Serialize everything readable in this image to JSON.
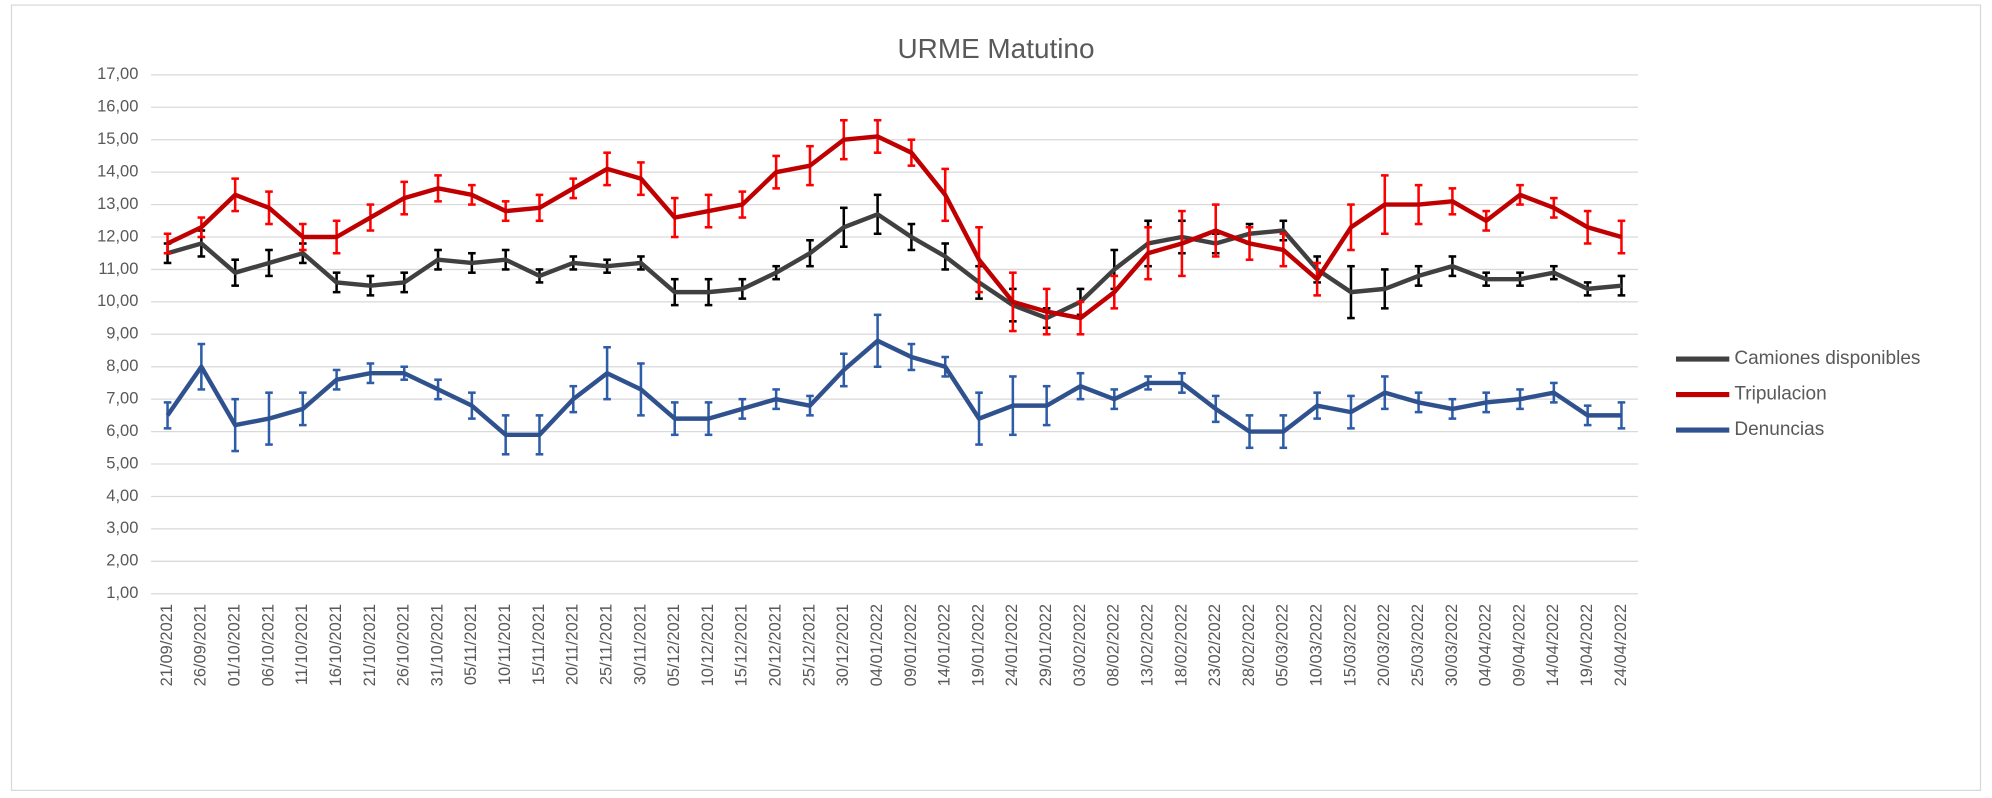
{
  "chart_data": {
    "type": "line",
    "title": "URME Matutino",
    "categories": [
      "21/09/2021",
      "26/09/2021",
      "01/10/2021",
      "06/10/2021",
      "11/10/2021",
      "16/10/2021",
      "21/10/2021",
      "26/10/2021",
      "31/10/2021",
      "05/11/2021",
      "10/11/2021",
      "15/11/2021",
      "20/11/2021",
      "25/11/2021",
      "30/11/2021",
      "05/12/2021",
      "10/12/2021",
      "15/12/2021",
      "20/12/2021",
      "25/12/2021",
      "30/12/2021",
      "04/01/2022",
      "09/01/2022",
      "14/01/2022",
      "19/01/2022",
      "24/01/2022",
      "29/01/2022",
      "03/02/2022",
      "08/02/2022",
      "13/02/2022",
      "18/02/2022",
      "23/02/2022",
      "28/02/2022",
      "05/03/2022",
      "10/03/2022",
      "15/03/2022",
      "20/03/2022",
      "25/03/2022",
      "30/03/2022",
      "04/04/2022",
      "09/04/2022",
      "14/04/2022",
      "19/04/2022",
      "24/04/2022"
    ],
    "series": [
      {
        "name": "Camiones disponibles",
        "color": "#404040",
        "error_color": "#000000",
        "values": [
          11.5,
          11.8,
          10.9,
          11.2,
          11.5,
          10.6,
          10.5,
          10.6,
          11.3,
          11.2,
          11.3,
          10.8,
          11.2,
          11.1,
          11.2,
          10.3,
          10.3,
          10.4,
          10.9,
          11.5,
          12.3,
          12.7,
          12.0,
          11.4,
          10.6,
          9.9,
          9.5,
          10.0,
          11.0,
          11.8,
          12.0,
          11.8,
          12.1,
          12.2,
          11.0,
          10.3,
          10.4,
          10.8,
          11.1,
          10.7,
          10.7,
          10.9,
          10.4,
          10.5
        ],
        "errors": [
          0.3,
          0.4,
          0.4,
          0.4,
          0.3,
          0.3,
          0.3,
          0.3,
          0.3,
          0.3,
          0.3,
          0.2,
          0.2,
          0.2,
          0.2,
          0.4,
          0.4,
          0.3,
          0.2,
          0.4,
          0.6,
          0.6,
          0.4,
          0.4,
          0.5,
          0.5,
          0.3,
          0.4,
          0.6,
          0.7,
          0.5,
          0.3,
          0.3,
          0.3,
          0.4,
          0.8,
          0.6,
          0.3,
          0.3,
          0.2,
          0.2,
          0.2,
          0.2,
          0.3
        ]
      },
      {
        "name": "Tripulacion",
        "color": "#c00000",
        "error_color": "#ff0000",
        "values": [
          11.8,
          12.3,
          13.3,
          12.9,
          12.0,
          12.0,
          12.6,
          13.2,
          13.5,
          13.3,
          12.8,
          12.9,
          13.5,
          14.1,
          13.8,
          12.6,
          12.8,
          13.0,
          14.0,
          14.2,
          15.0,
          15.1,
          14.6,
          13.3,
          11.3,
          10.0,
          9.7,
          9.5,
          10.3,
          11.5,
          11.8,
          12.2,
          11.8,
          11.6,
          10.7,
          12.3,
          13.0,
          13.0,
          13.1,
          12.5,
          13.3,
          12.9,
          12.3,
          12.0
        ],
        "errors": [
          0.3,
          0.3,
          0.5,
          0.5,
          0.4,
          0.5,
          0.4,
          0.5,
          0.4,
          0.3,
          0.3,
          0.4,
          0.3,
          0.5,
          0.5,
          0.6,
          0.5,
          0.4,
          0.5,
          0.6,
          0.6,
          0.5,
          0.4,
          0.8,
          1.0,
          0.9,
          0.7,
          0.5,
          0.5,
          0.8,
          1.0,
          0.8,
          0.5,
          0.5,
          0.5,
          0.7,
          0.9,
          0.6,
          0.4,
          0.3,
          0.3,
          0.3,
          0.5,
          0.5
        ]
      },
      {
        "name": "Denuncias",
        "color": "#2f528f",
        "error_color": "#2e5da8",
        "values": [
          6.5,
          8.0,
          6.2,
          6.4,
          6.7,
          7.6,
          7.8,
          7.8,
          7.3,
          6.8,
          5.9,
          5.9,
          7.0,
          7.8,
          7.3,
          6.4,
          6.4,
          6.7,
          7.0,
          6.8,
          7.9,
          8.8,
          8.3,
          8.0,
          6.4,
          6.8,
          6.8,
          7.4,
          7.0,
          7.5,
          7.5,
          6.7,
          6.0,
          6.0,
          6.8,
          6.6,
          7.2,
          6.9,
          6.7,
          6.9,
          7.0,
          7.2,
          6.5,
          6.5
        ],
        "errors": [
          0.4,
          0.7,
          0.8,
          0.8,
          0.5,
          0.3,
          0.3,
          0.2,
          0.3,
          0.4,
          0.6,
          0.6,
          0.4,
          0.8,
          0.8,
          0.5,
          0.5,
          0.3,
          0.3,
          0.3,
          0.5,
          0.8,
          0.4,
          0.3,
          0.8,
          0.9,
          0.6,
          0.4,
          0.3,
          0.2,
          0.3,
          0.4,
          0.5,
          0.5,
          0.4,
          0.5,
          0.5,
          0.3,
          0.3,
          0.3,
          0.3,
          0.3,
          0.3,
          0.4
        ]
      }
    ],
    "ylim": [
      1,
      17
    ],
    "yticks": [
      {
        "value": 1,
        "label": "1,00"
      },
      {
        "value": 2,
        "label": "2,00"
      },
      {
        "value": 3,
        "label": "3,00"
      },
      {
        "value": 4,
        "label": "4,00"
      },
      {
        "value": 5,
        "label": "5,00"
      },
      {
        "value": 6,
        "label": "6,00"
      },
      {
        "value": 7,
        "label": "7,00"
      },
      {
        "value": 8,
        "label": "8,00"
      },
      {
        "value": 9,
        "label": "9,00"
      },
      {
        "value": 10,
        "label": "10,00"
      },
      {
        "value": 11,
        "label": "11,00"
      },
      {
        "value": 12,
        "label": "12,00"
      },
      {
        "value": 13,
        "label": "13,00"
      },
      {
        "value": 14,
        "label": "14,00"
      },
      {
        "value": 15,
        "label": "15,00"
      },
      {
        "value": 16,
        "label": "16,00"
      },
      {
        "value": 17,
        "label": "17,00"
      }
    ],
    "grid": true,
    "legend": "right"
  }
}
